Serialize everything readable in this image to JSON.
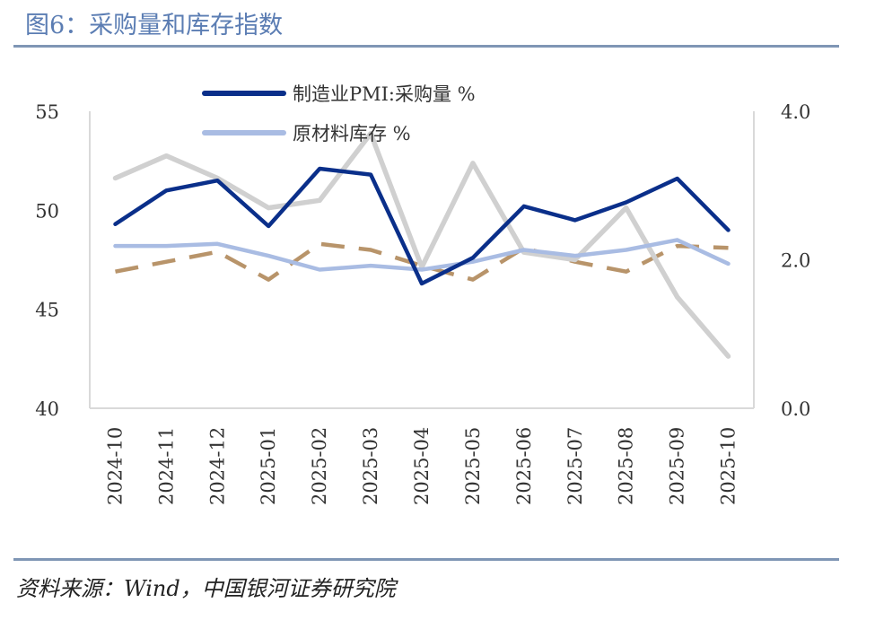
{
  "header": {
    "title": "图6：采购量和库存指数"
  },
  "footer": {
    "source": "资料来源：Wind，中国银河证券研究院"
  },
  "chart_data": {
    "type": "line",
    "title": "图6：采购量和库存指数",
    "categories": [
      "2024-10",
      "2024-11",
      "2024-12",
      "2025-01",
      "2025-02",
      "2025-03",
      "2025-04",
      "2025-05",
      "2025-06",
      "2025-07",
      "2025-08",
      "2025-09",
      "2025-10"
    ],
    "y_left": {
      "range": [
        40,
        55
      ],
      "ticks": [
        "55",
        "50",
        "45",
        "40"
      ]
    },
    "y_right": {
      "range": [
        0.0,
        4.0
      ],
      "ticks": [
        "4.0",
        "2.0",
        "0.0"
      ]
    },
    "legend_position": "top-center",
    "series": [
      {
        "name": "制造业PMI:采购量 %",
        "axis": "left",
        "color": "#0a2f8a",
        "style": "solid",
        "values": [
          49.3,
          51.0,
          51.5,
          49.2,
          52.1,
          51.8,
          46.3,
          47.6,
          50.2,
          49.5,
          50.4,
          51.6,
          49.0
        ]
      },
      {
        "name": "原材料库存 %",
        "axis": "left",
        "color": "#a9bce3",
        "style": "solid",
        "values": [
          48.2,
          48.2,
          48.3,
          47.7,
          47.0,
          47.2,
          47.0,
          47.4,
          48.0,
          47.7,
          48.0,
          48.5,
          47.3
        ]
      },
      {
        "name": "",
        "axis": "left",
        "color": "#b8946a",
        "style": "dashed",
        "values": [
          46.9,
          47.4,
          47.9,
          46.5,
          48.3,
          48.0,
          47.2,
          46.5,
          48.1,
          47.4,
          46.9,
          48.2,
          48.1
        ]
      },
      {
        "name": "",
        "axis": "right",
        "color": "#d0d0d0",
        "style": "solid",
        "values": [
          3.1,
          3.4,
          3.1,
          2.7,
          2.8,
          3.7,
          1.9,
          3.3,
          2.1,
          2.0,
          2.7,
          1.5,
          0.7
        ]
      }
    ]
  }
}
